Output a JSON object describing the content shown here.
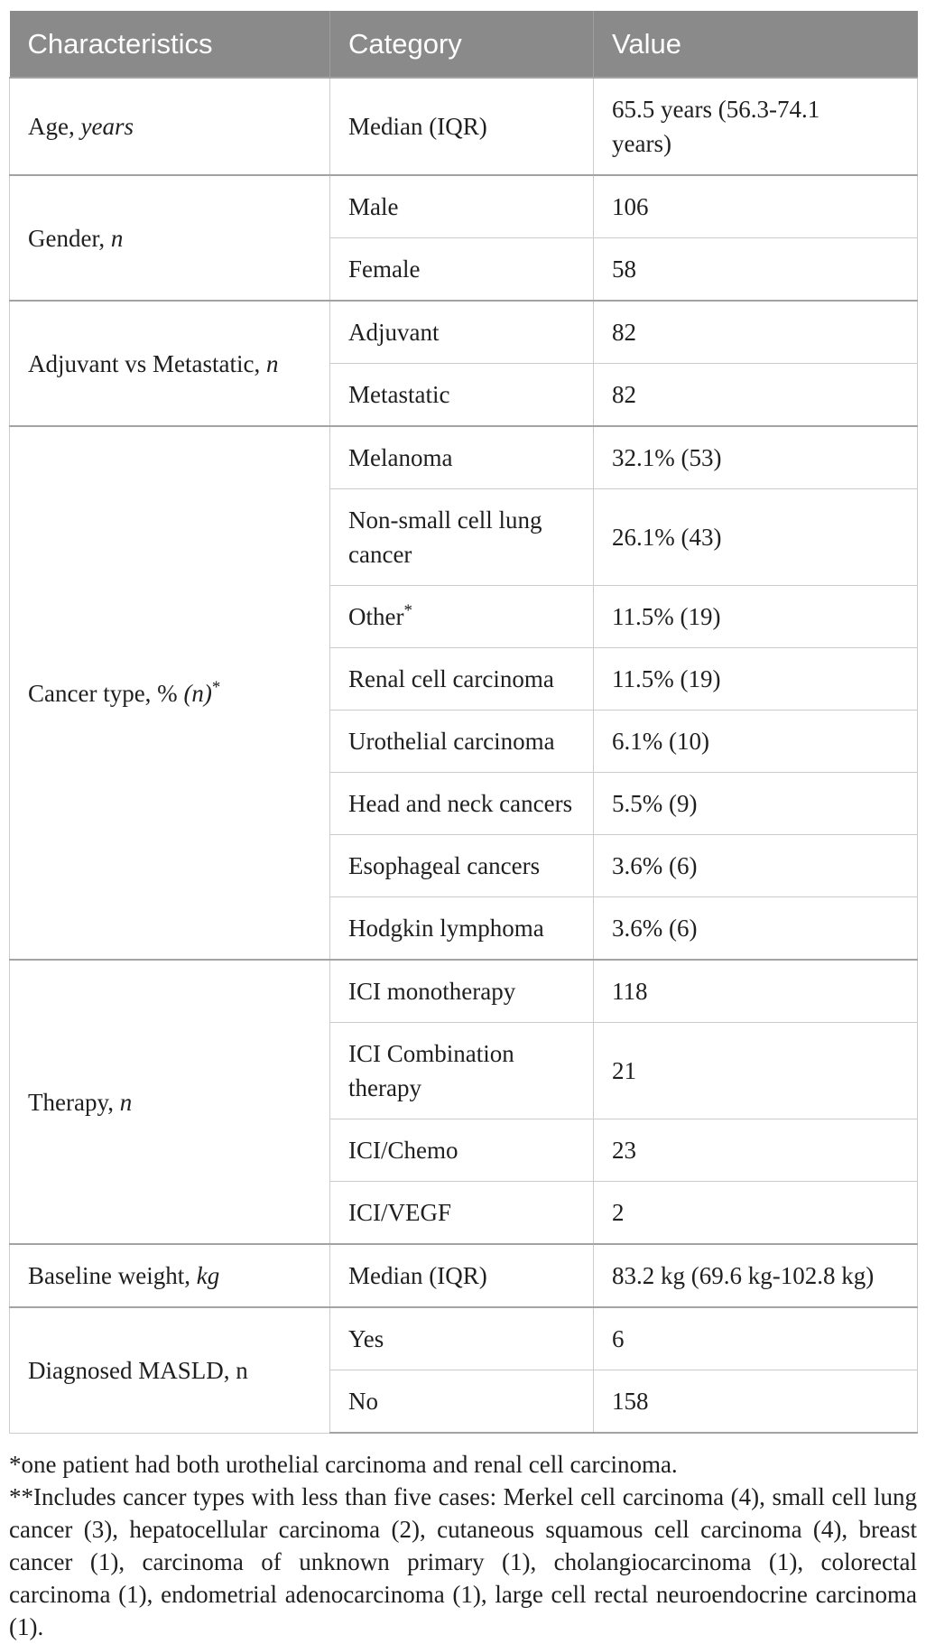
{
  "colors": {
    "header_bg": "#8a8a8a",
    "header_text": "#ffffff",
    "body_text": "#1f1f1f",
    "border_light": "#cccccc",
    "border_dark": "#a3a3a3",
    "page_bg": "#ffffff"
  },
  "table": {
    "headers": [
      "Characteristics",
      "Category",
      "Value"
    ],
    "groups": [
      {
        "label": "Age,",
        "label_italic": "years",
        "label_sup": "",
        "rows": [
          {
            "category": "Median (IQR)",
            "value": "65.5 years (56.3-74.1 years)"
          }
        ]
      },
      {
        "label": "Gender,",
        "label_italic": "n",
        "label_sup": "",
        "rows": [
          {
            "category": "Male",
            "value": "106"
          },
          {
            "category": "Female",
            "value": "58"
          }
        ]
      },
      {
        "label": "Adjuvant vs Metastatic,",
        "label_italic": "n",
        "label_sup": "",
        "rows": [
          {
            "category": "Adjuvant",
            "value": "82"
          },
          {
            "category": "Metastatic",
            "value": "82"
          }
        ]
      },
      {
        "label": "Cancer type, %",
        "label_italic": "(n)",
        "label_sup": "*",
        "rows": [
          {
            "category": "Melanoma",
            "value": "32.1% (53)"
          },
          {
            "category": "Non-small cell lung cancer",
            "value": "26.1% (43)"
          },
          {
            "category": "Other",
            "category_sup": "*",
            "value": "11.5% (19)"
          },
          {
            "category": "Renal cell carcinoma",
            "value": "11.5% (19)"
          },
          {
            "category": "Urothelial carcinoma",
            "value": "6.1% (10)"
          },
          {
            "category": "Head and neck cancers",
            "value": "5.5% (9)"
          },
          {
            "category": "Esophageal cancers",
            "value": "3.6% (6)"
          },
          {
            "category": "Hodgkin lymphoma",
            "value": "3.6% (6)"
          }
        ]
      },
      {
        "label": "Therapy,",
        "label_italic": "n",
        "label_sup": "",
        "rows": [
          {
            "category": "ICI monotherapy",
            "value": "118"
          },
          {
            "category": "ICI Combination therapy",
            "value": "21"
          },
          {
            "category": "ICI/Chemo",
            "value": "23"
          },
          {
            "category": "ICI/VEGF",
            "value": "2"
          }
        ]
      },
      {
        "label": "Baseline weight,",
        "label_italic": "kg",
        "label_sup": "",
        "rows": [
          {
            "category": "Median (IQR)",
            "value": "83.2 kg (69.6 kg-102.8 kg)"
          }
        ]
      },
      {
        "label": "Diagnosed MASLD, n",
        "label_italic": "",
        "label_sup": "",
        "rows": [
          {
            "category": "Yes",
            "value": "6"
          },
          {
            "category": "No",
            "value": "158"
          }
        ]
      }
    ]
  },
  "footnotes": [
    "*one patient had both urothelial carcinoma and renal cell carcinoma.",
    "**Includes cancer types with less than five cases: Merkel cell carcinoma (4), small cell lung cancer (3), hepatocellular carcinoma (2), cutaneous squamous cell carcinoma (4), breast cancer (1), carcinoma of unknown primary (1), cholangiocarcinoma (1), colorectal carcinoma (1), endometrial adenocarcinoma (1), large cell rectal neuroendocrine carcinoma (1)."
  ]
}
